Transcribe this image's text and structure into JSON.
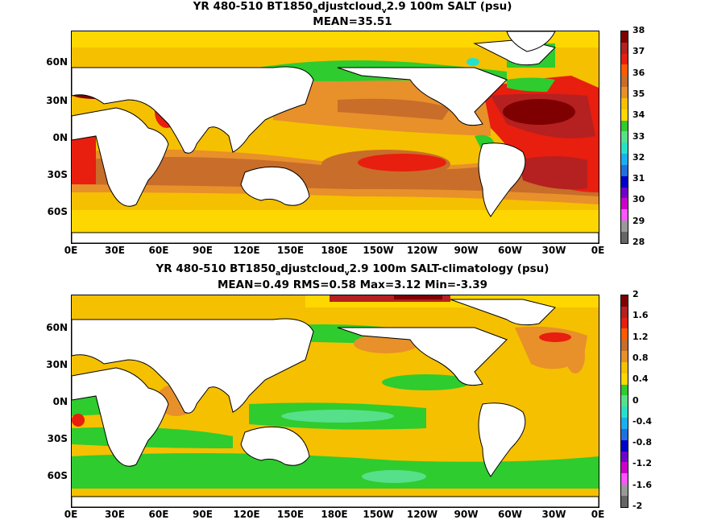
{
  "panel1": {
    "title_pre": "YR 480-510 BT1850",
    "title_sub1": "a",
    "title_mid": "djustcloud",
    "title_sub2": "v",
    "title_post": "2.9 100m SALT (psu)",
    "stats": "MEAN=35.51",
    "colorbar_labels": [
      "38",
      "37",
      "36",
      "35",
      "34",
      "33",
      "32",
      "31",
      "30",
      "29",
      "28"
    ],
    "colors": [
      "#7f0000",
      "#b52020",
      "#e81e0e",
      "#ff5a00",
      "#c86d2a",
      "#e8902a",
      "#f5c000",
      "#ffd700",
      "#2ecc2e",
      "#56e08a",
      "#27e0c8",
      "#1ab0f0",
      "#2070e0",
      "#0000cc",
      "#7000cc",
      "#cc00cc",
      "#ff55ff",
      "#999999",
      "#666666"
    ]
  },
  "panel2": {
    "title_pre": "YR 480-510 BT1850",
    "title_sub1": "a",
    "title_mid": "djustcloud",
    "title_sub2": "v",
    "title_post": "2.9 100m SALT-climatology (psu)",
    "stats": "MEAN=0.49   RMS=0.58   Max=3.12   Min=-3.39",
    "colorbar_labels": [
      "2",
      "1.6",
      "1.2",
      "0.8",
      "0.4",
      "0",
      "-0.4",
      "-0.8",
      "-1.2",
      "-1.6",
      "-2"
    ],
    "colors": [
      "#7f0000",
      "#b52020",
      "#e81e0e",
      "#ff5a00",
      "#c86d2a",
      "#e8902a",
      "#f5c000",
      "#ffd700",
      "#2ecc2e",
      "#56e08a",
      "#27e0c8",
      "#1ab0f0",
      "#2070e0",
      "#0000cc",
      "#7000cc",
      "#cc00cc",
      "#ff55ff",
      "#999999",
      "#666666"
    ]
  },
  "axes": {
    "x_ticks": [
      "0E",
      "30E",
      "60E",
      "90E",
      "120E",
      "150E",
      "180E",
      "150W",
      "120W",
      "90W",
      "60W",
      "30W",
      "0E"
    ],
    "y_ticks": [
      "60N",
      "30N",
      "0N",
      "30S",
      "60S"
    ]
  }
}
